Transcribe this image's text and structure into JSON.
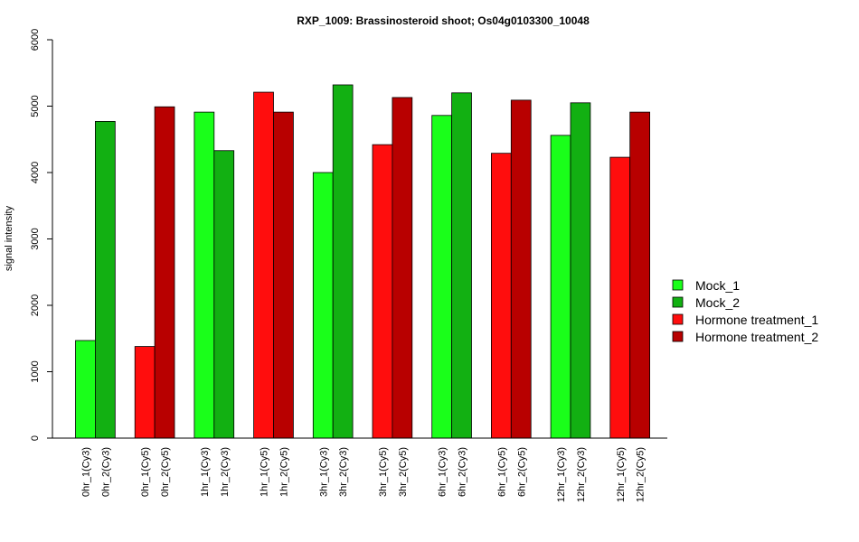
{
  "chart_data": {
    "type": "bar",
    "title": "RXP_1009: Brassinosteroid shoot; Os04g0103300_10048",
    "xlabel": "",
    "ylabel": "signal intensity",
    "ylim": [
      0,
      6000
    ],
    "yticks": [
      0,
      1000,
      2000,
      3000,
      4000,
      5000,
      6000
    ],
    "grid": false,
    "legend_position": "right",
    "legend": [
      {
        "label": "Mock_1",
        "color": "#1aff1a"
      },
      {
        "label": "Mock_2",
        "color": "#12b012"
      },
      {
        "label": "Hormone treatment_1",
        "color": "#ff0d0d"
      },
      {
        "label": "Hormone treatment_2",
        "color": "#b80000"
      }
    ],
    "bars": [
      {
        "label": "0hr_1(Cy3)",
        "value": 1470,
        "color": "#1aff1a"
      },
      {
        "label": "0hr_2(Cy3)",
        "value": 4770,
        "color": "#12b012"
      },
      {
        "label": "0hr_1(Cy5)",
        "value": 1380,
        "color": "#ff0d0d"
      },
      {
        "label": "0hr_2(Cy5)",
        "value": 4990,
        "color": "#b80000"
      },
      {
        "label": "1hr_1(Cy3)",
        "value": 4910,
        "color": "#1aff1a"
      },
      {
        "label": "1hr_2(Cy3)",
        "value": 4330,
        "color": "#12b012"
      },
      {
        "label": "1hr_1(Cy5)",
        "value": 5210,
        "color": "#ff0d0d"
      },
      {
        "label": "1hr_2(Cy5)",
        "value": 4910,
        "color": "#b80000"
      },
      {
        "label": "3hr_1(Cy3)",
        "value": 4000,
        "color": "#1aff1a"
      },
      {
        "label": "3hr_2(Cy3)",
        "value": 5320,
        "color": "#12b012"
      },
      {
        "label": "3hr_1(Cy5)",
        "value": 4420,
        "color": "#ff0d0d"
      },
      {
        "label": "3hr_2(Cy5)",
        "value": 5130,
        "color": "#b80000"
      },
      {
        "label": "6hr_1(Cy3)",
        "value": 4860,
        "color": "#1aff1a"
      },
      {
        "label": "6hr_2(Cy3)",
        "value": 5200,
        "color": "#12b012"
      },
      {
        "label": "6hr_1(Cy5)",
        "value": 4290,
        "color": "#ff0d0d"
      },
      {
        "label": "6hr_2(Cy5)",
        "value": 5090,
        "color": "#b80000"
      },
      {
        "label": "12hr_1(Cy3)",
        "value": 4560,
        "color": "#1aff1a"
      },
      {
        "label": "12hr_2(Cy3)",
        "value": 5050,
        "color": "#12b012"
      },
      {
        "label": "12hr_1(Cy5)",
        "value": 4230,
        "color": "#ff0d0d"
      },
      {
        "label": "12hr_2(Cy5)",
        "value": 4910,
        "color": "#b80000"
      }
    ]
  }
}
